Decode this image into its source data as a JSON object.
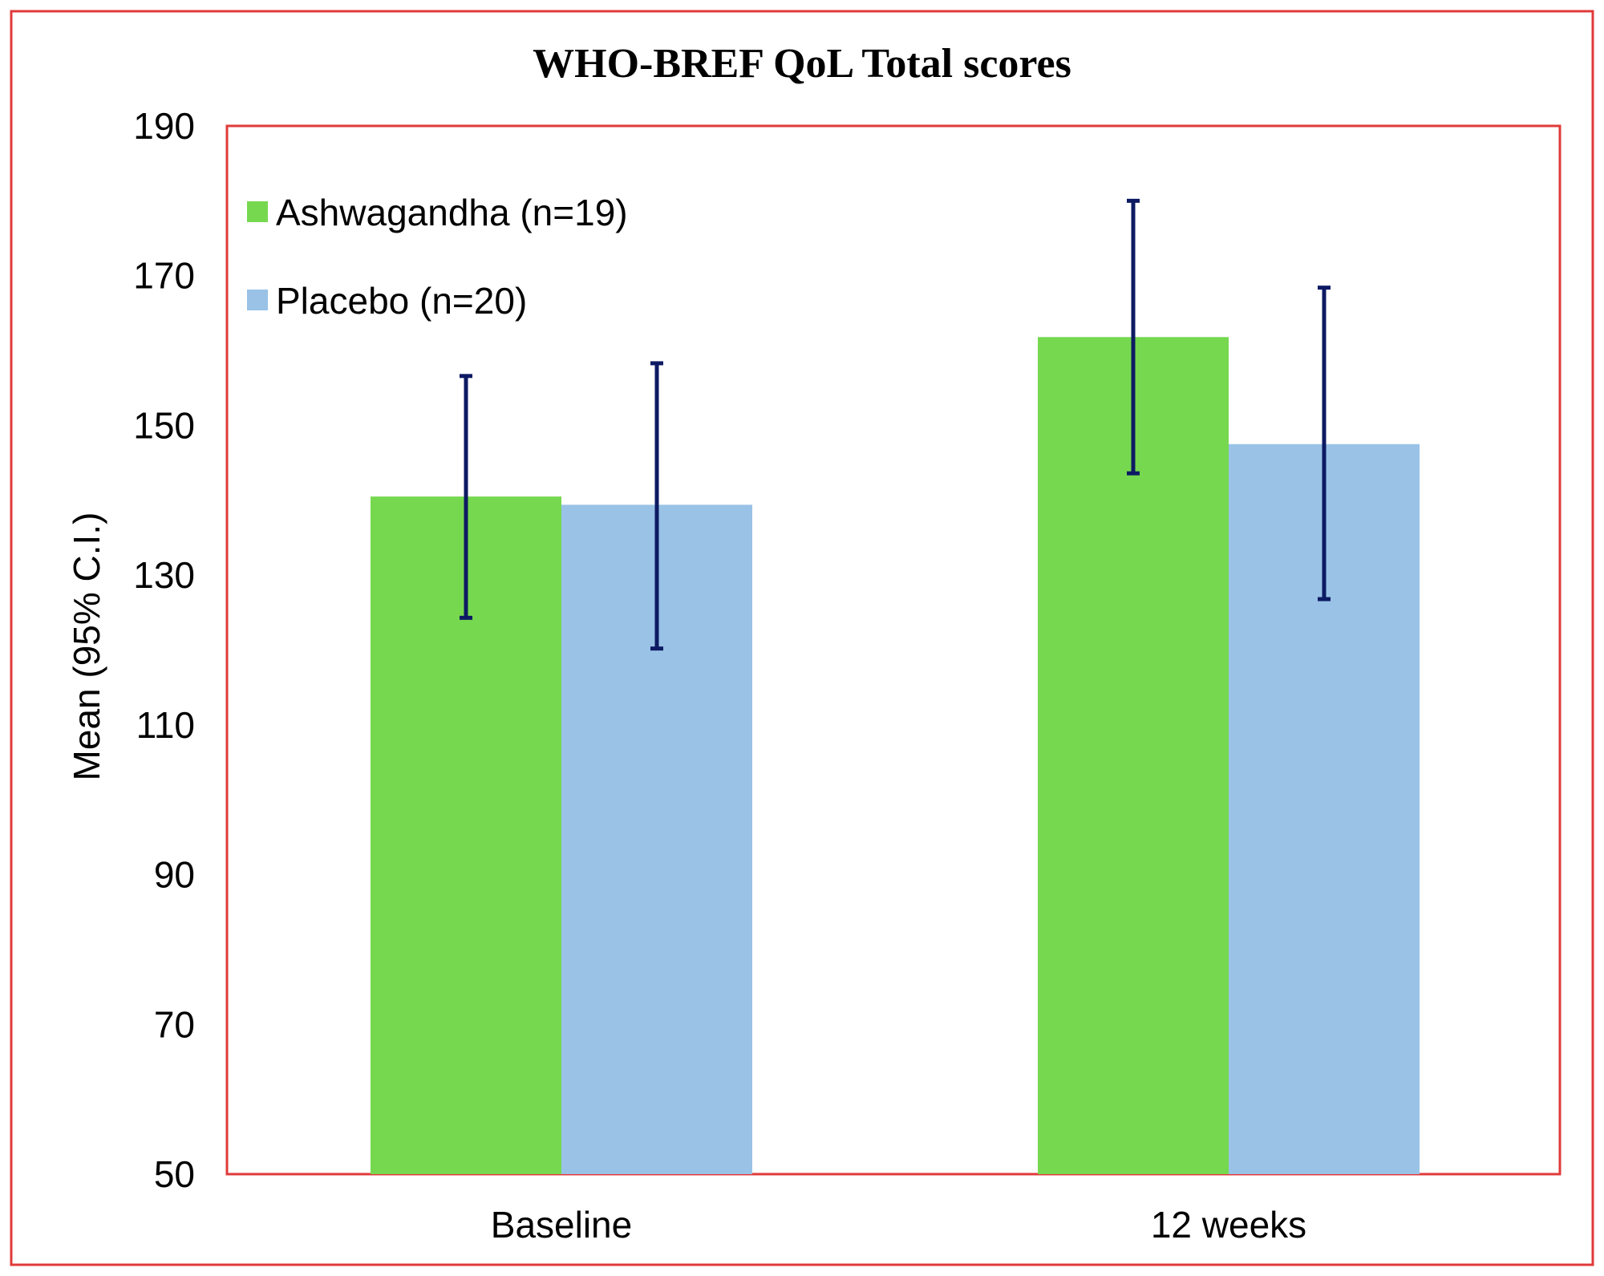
{
  "chart_data": {
    "type": "bar",
    "title": "WHO-BREF QoL Total scores",
    "xlabel": "",
    "ylabel": "Mean (95% C.I.)",
    "ylim": [
      50,
      190
    ],
    "yticks": [
      50,
      70,
      90,
      110,
      130,
      150,
      170,
      190
    ],
    "categories": [
      "Baseline",
      "12 weeks"
    ],
    "series": [
      {
        "name": "Ashwagandha (n=19)",
        "color": "#76d84f",
        "values": [
          140.5,
          161.8
        ],
        "ci_lower": [
          124.3,
          143.6
        ],
        "ci_upper": [
          156.6,
          180.0
        ]
      },
      {
        "name": "Placebo (n=20)",
        "color": "#99c2e6",
        "values": [
          139.4,
          147.5
        ],
        "ci_lower": [
          120.2,
          126.8
        ],
        "ci_upper": [
          158.3,
          168.4
        ]
      }
    ],
    "error_bar_color": "#0d1a63",
    "frame_color": "#e03a3a",
    "grid": false,
    "legend_position": "top-left inside plot"
  }
}
